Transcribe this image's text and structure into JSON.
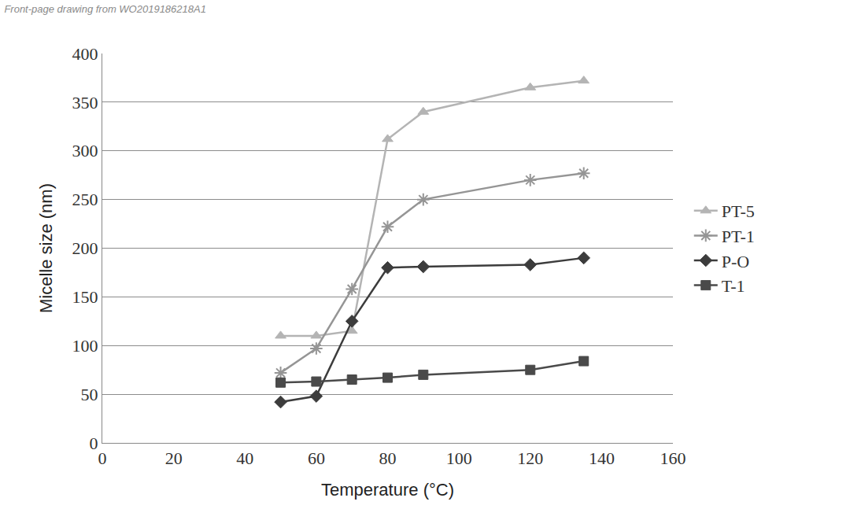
{
  "chart_data": {
    "type": "line",
    "title": "Front-page drawing from WO2019186218A1",
    "x_label": "Temperature (°C)",
    "y_label": "Micelle size (nm)",
    "xlim": [
      0,
      160
    ],
    "xticks": [
      0,
      20,
      40,
      60,
      80,
      100,
      120,
      140,
      160
    ],
    "ylim": [
      0,
      400
    ],
    "yticks": [
      0,
      50,
      100,
      150,
      200,
      250,
      300,
      350,
      400
    ],
    "grid": true,
    "legend": "right",
    "series": [
      {
        "name": "PT-5",
        "color": "#b4b4b4",
        "marker": "triangle",
        "line_style": "solid",
        "x": [
          50,
          60,
          70,
          80,
          90,
          120,
          135
        ],
        "values": [
          110,
          110,
          115,
          312,
          340,
          365,
          372
        ]
      },
      {
        "name": "PT-1",
        "color": "#959595",
        "marker": "asterisk",
        "line_style": "solid",
        "x": [
          50,
          60,
          70,
          80,
          90,
          120,
          135
        ],
        "values": [
          72,
          97,
          158,
          222,
          250,
          270,
          277
        ]
      },
      {
        "name": "P-O",
        "color": "#3c3c3c",
        "marker": "diamond",
        "line_style": "solid",
        "x": [
          50,
          60,
          70,
          80,
          90,
          120,
          135
        ],
        "values": [
          42,
          48,
          125,
          180,
          181,
          183,
          190
        ]
      },
      {
        "name": "T-1",
        "color": "#4a4a4a",
        "marker": "square",
        "line_style": "solid",
        "x": [
          50,
          60,
          70,
          80,
          90,
          120,
          135
        ],
        "values": [
          62,
          63,
          65,
          67,
          70,
          75,
          84
        ]
      }
    ]
  }
}
